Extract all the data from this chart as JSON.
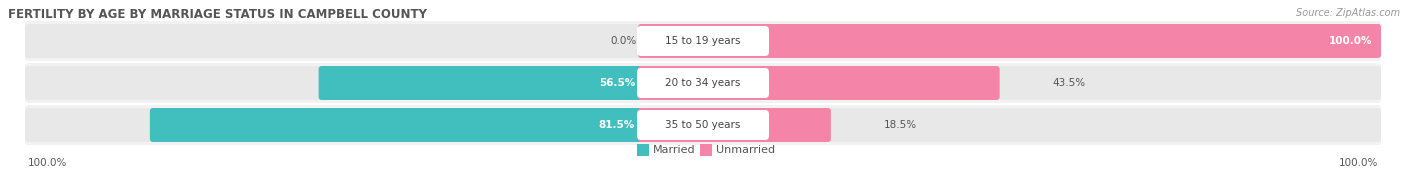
{
  "title": "FERTILITY BY AGE BY MARRIAGE STATUS IN CAMPBELL COUNTY",
  "source": "Source: ZipAtlas.com",
  "categories": [
    "15 to 19 years",
    "20 to 34 years",
    "35 to 50 years"
  ],
  "married": [
    0.0,
    56.5,
    81.5
  ],
  "unmarried": [
    100.0,
    43.5,
    18.5
  ],
  "married_color": "#41bfbf",
  "unmarried_color": "#f585a8",
  "bg_color": "#ffffff",
  "bar_bg_color": "#e8e8e8",
  "title_color": "#555555",
  "source_color": "#999999",
  "label_text_color": "#555555",
  "legend_married": "Married",
  "legend_unmarried": "Unmarried",
  "figsize": [
    14.06,
    1.96
  ],
  "dpi": 100,
  "bar_row_bg": "#f2f2f2"
}
